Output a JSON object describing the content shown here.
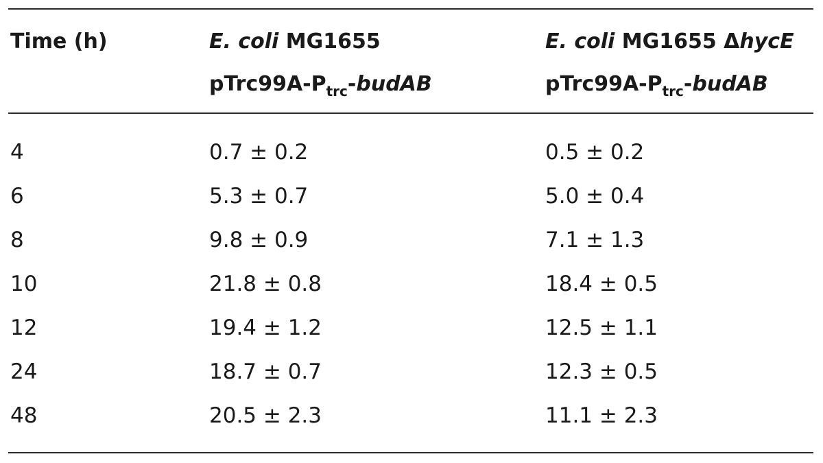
{
  "table": {
    "header": {
      "col_time": "Time (h)",
      "col_a": {
        "species": "E. coli",
        "strain": " MG1655",
        "plasmid_prefix": "pTrc99A-P",
        "plasmid_sub": "trc",
        "plasmid_dash": "-",
        "plasmid_gene": "budAB"
      },
      "col_b": {
        "species": "E. coli",
        "strain": " MG1655 ",
        "delta": "Δ",
        "mutation": "hycE",
        "plasmid_prefix": "pTrc99A-P",
        "plasmid_sub": "trc",
        "plasmid_dash": "-",
        "plasmid_gene": "budAB"
      }
    },
    "rows": [
      {
        "time": "4",
        "a": "0.7 ± 0.2",
        "b": "0.5 ± 0.2"
      },
      {
        "time": "6",
        "a": "5.3 ± 0.7",
        "b": "5.0 ± 0.4"
      },
      {
        "time": "8",
        "a": "9.8 ± 0.9",
        "b": "7.1 ± 1.3"
      },
      {
        "time": "10",
        "a": "21.8 ± 0.8",
        "b": "18.4 ± 0.5"
      },
      {
        "time": "12",
        "a": "19.4 ± 1.2",
        "b": "12.5 ± 1.1"
      },
      {
        "time": "24",
        "a": "18.7 ± 0.7",
        "b": "12.3 ± 0.5"
      },
      {
        "time": "48",
        "a": "20.5 ± 2.3",
        "b": "11.1 ± 2.3"
      }
    ]
  }
}
